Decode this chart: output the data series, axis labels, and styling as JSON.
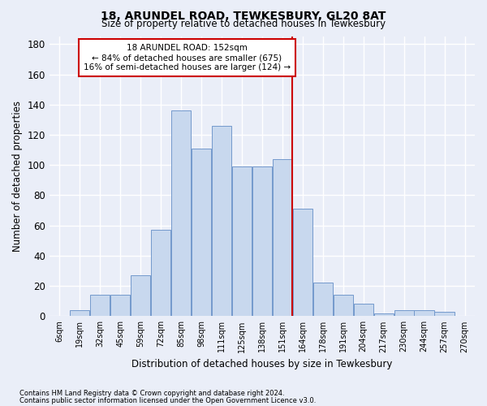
{
  "title1": "18, ARUNDEL ROAD, TEWKESBURY, GL20 8AT",
  "title2": "Size of property relative to detached houses in Tewkesbury",
  "xlabel": "Distribution of detached houses by size in Tewkesbury",
  "ylabel": "Number of detached properties",
  "bar_color": "#c8d8ee",
  "bar_edge_color": "#7399cc",
  "bin_labels": [
    "6sqm",
    "19sqm",
    "32sqm",
    "45sqm",
    "59sqm",
    "72sqm",
    "85sqm",
    "98sqm",
    "111sqm",
    "125sqm",
    "138sqm",
    "151sqm",
    "164sqm",
    "178sqm",
    "191sqm",
    "204sqm",
    "217sqm",
    "230sqm",
    "244sqm",
    "257sqm",
    "270sqm"
  ],
  "bar_heights": [
    0,
    4,
    14,
    14,
    27,
    57,
    136,
    111,
    126,
    99,
    99,
    104,
    71,
    22,
    14,
    8,
    2,
    4,
    4,
    3,
    0
  ],
  "vline_x_index": 11,
  "vline_color": "#cc0000",
  "annotation_title": "18 ARUNDEL ROAD: 152sqm",
  "annotation_line1": "← 84% of detached houses are smaller (675)",
  "annotation_line2": "16% of semi-detached houses are larger (124) →",
  "annotation_box_color": "#ffffff",
  "annotation_box_edge": "#cc0000",
  "background_color": "#eaeef8",
  "grid_color": "#ffffff",
  "ylim": [
    0,
    185
  ],
  "yticks": [
    0,
    20,
    40,
    60,
    80,
    100,
    120,
    140,
    160,
    180
  ],
  "footer1": "Contains HM Land Registry data © Crown copyright and database right 2024.",
  "footer2": "Contains public sector information licensed under the Open Government Licence v3.0."
}
